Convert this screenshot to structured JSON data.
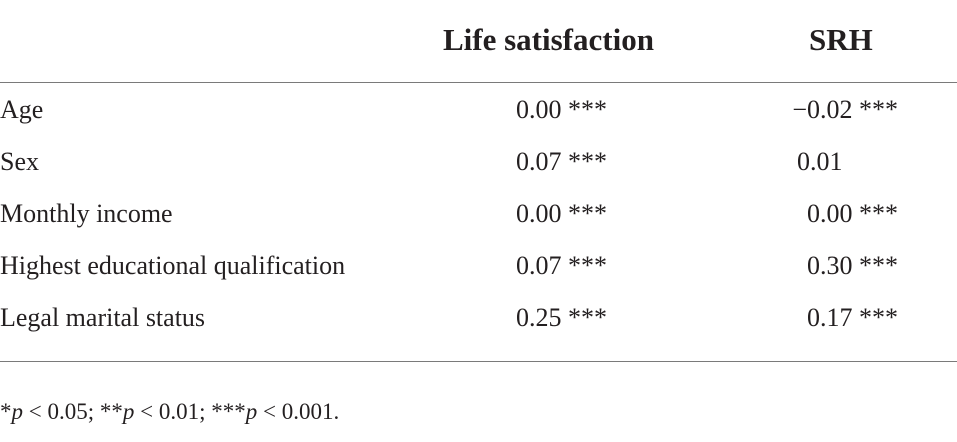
{
  "table": {
    "headers": [
      "",
      "Life satisfaction",
      "SRH"
    ],
    "rows": [
      {
        "label": "Age",
        "life_satisfaction": "0.00 ***",
        "srh": "−0.02 ***"
      },
      {
        "label": "Sex",
        "life_satisfaction": "0.07 ***",
        "srh": "0.01   "
      },
      {
        "label": "Monthly income",
        "life_satisfaction": "0.00 ***",
        "srh": "0.00 ***"
      },
      {
        "label": "Highest educational qualification",
        "life_satisfaction": "0.07 ***",
        "srh": "0.30 ***"
      },
      {
        "label": "Legal marital status",
        "life_satisfaction": "0.25 ***",
        "srh": "0.17 ***"
      }
    ]
  },
  "footnote": {
    "part1_stars": "*",
    "part1_p": "p",
    "part1_rest": " < 0.05; **",
    "part2_p": "p",
    "part2_rest": " < 0.01; ***",
    "part3_p": "p",
    "part3_rest": " < 0.001."
  }
}
